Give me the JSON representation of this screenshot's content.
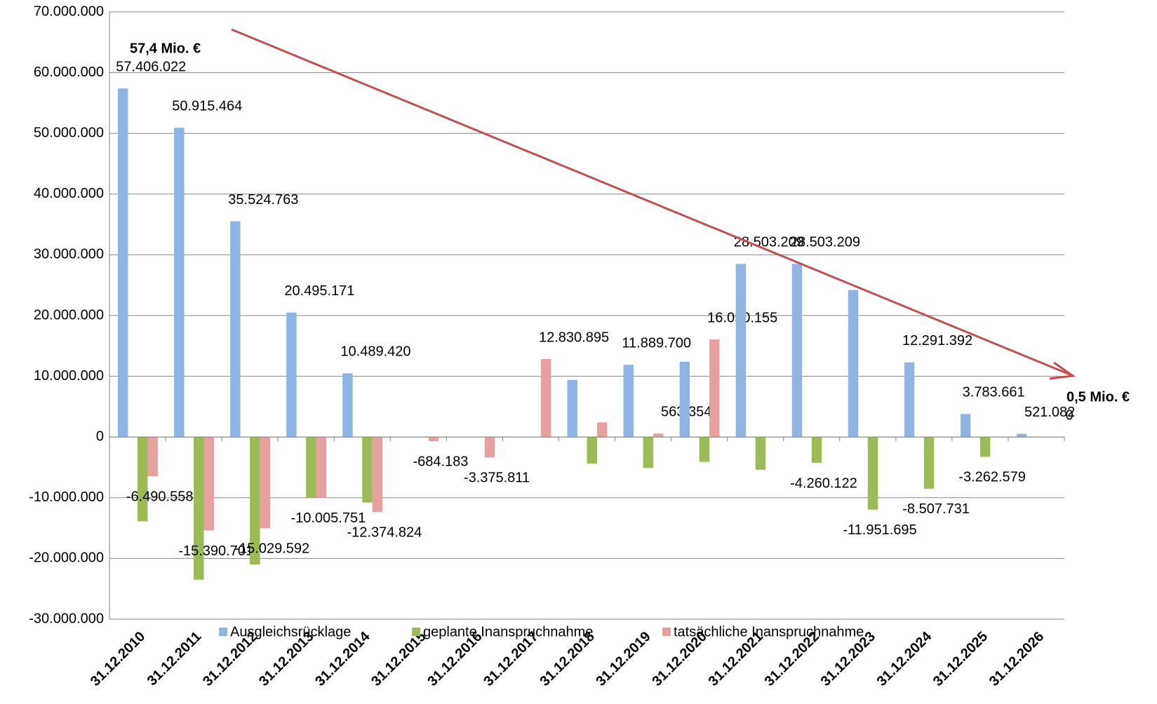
{
  "chart_data": {
    "type": "bar",
    "annotations": [
      "57,4 Mio. €",
      "0,5 Mio. €"
    ],
    "categories": [
      "31.12.2010",
      "31.12.2011",
      "31.12.2012",
      "31.12.2013",
      "31.12.2014",
      "31.12.2015",
      "31.12.2016",
      "31.12.2017",
      "31.12.2018",
      "31.12.2019",
      "31.12.2020",
      "31.12.2021",
      "31.12.2022",
      "31.12.2023",
      "31.12.2024",
      "31.12.2025",
      "31.12.2026"
    ],
    "series": [
      {
        "name": "Ausgleichsrücklage",
        "color": "#8eb4e3",
        "values": [
          57406022,
          50915464,
          35524763,
          20495171,
          10489420,
          null,
          null,
          null,
          9400000,
          11889700,
          12400000,
          28503209,
          28503209,
          24200000,
          12291392,
          3783661,
          521082
        ],
        "value_labels": [
          "57.406.022",
          "50.915.464",
          "35.524.763",
          "20.495.171",
          "10.489.420",
          null,
          null,
          null,
          null,
          "11.889.700",
          null,
          "28.503.209",
          "28.503.209",
          null,
          "12.291.392",
          "3.783.661",
          "521.082"
        ]
      },
      {
        "name": "geplante Inanspruchnahme",
        "color": "#9bbb59",
        "values": [
          -13900000,
          -23500000,
          -21000000,
          -10000000,
          -10800000,
          null,
          null,
          null,
          -4400000,
          -5100000,
          -4100000,
          -5400000,
          -4260122,
          -11951695,
          -8507731,
          -3262579,
          0
        ],
        "value_labels": [
          null,
          null,
          null,
          null,
          null,
          null,
          null,
          null,
          null,
          null,
          null,
          null,
          "-4.260.122",
          "-11.951.695",
          "-8.507.731",
          "-3.262.579",
          "0"
        ]
      },
      {
        "name": "tatsächliche Inanspruchnahme",
        "color": "#e6a09e",
        "values": [
          -6490558,
          -15390701,
          -15029592,
          -10005751,
          -12374824,
          -684183,
          -3375811,
          12830895,
          2400000,
          563354,
          16050155,
          null,
          null,
          null,
          null,
          null,
          null
        ],
        "value_labels": [
          "-6.490.558",
          "-15.390.701",
          "-15.029.592",
          "-10.005.751",
          "-12.374.824",
          "-684.183",
          "-3.375.811",
          "12.830.895",
          null,
          "563.354",
          "16.050.155",
          null,
          null,
          null,
          null,
          null,
          null
        ]
      }
    ],
    "ylim": [
      -30000000,
      70000000
    ],
    "yticks": [
      {
        "value": -30000000,
        "label": "-30.000.000"
      },
      {
        "value": -20000000,
        "label": "-20.000.000"
      },
      {
        "value": -10000000,
        "label": "-10.000.000"
      },
      0,
      {
        "value": 10000000,
        "label": "10.000.000"
      },
      {
        "value": 20000000,
        "label": "20.000.000"
      },
      {
        "value": 30000000,
        "label": "30.000.000"
      },
      {
        "value": 40000000,
        "label": "40.000.000"
      },
      {
        "value": 50000000,
        "label": "50.000.000"
      },
      {
        "value": 60000000,
        "label": "60.000.000"
      },
      {
        "value": 70000000,
        "label": "70.000.000"
      }
    ],
    "grid": true
  }
}
